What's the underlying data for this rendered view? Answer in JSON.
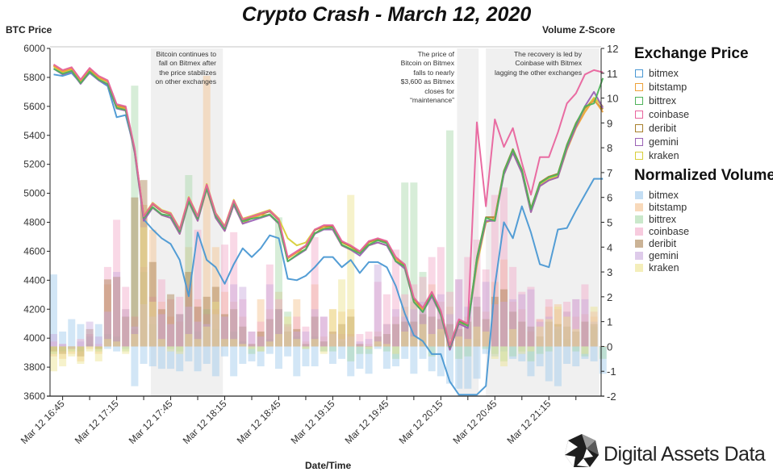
{
  "title": "Crypto Crash - March 12, 2020",
  "logo_text": "Digital Assets Data",
  "legend": {
    "price_title": "Exchange Price",
    "volume_title": "Normalized Volume",
    "items": [
      "bitmex",
      "bitstamp",
      "bittrex",
      "coinbase",
      "deribit",
      "gemini",
      "kraken"
    ]
  },
  "annotations": [
    {
      "lines": [
        "Bitcoin continues to",
        "fall on Bitmex after",
        "the price stabilizes",
        "on other exchanges"
      ],
      "shade": [
        "17:34",
        "18:14"
      ]
    },
    {
      "lines": [
        "The price of",
        "Bitcoin on Bitmex",
        "falls to nearly",
        "$3,600 as Bitmex",
        "closes for",
        "“maintenance”"
      ],
      "shade": [
        "20:24",
        "20:36"
      ]
    },
    {
      "lines": [
        "The recovery is led by",
        "Coinbase with Bitmex",
        "lagging the other exchanges"
      ],
      "shade": [
        "20:40",
        "21:43"
      ]
    }
  ],
  "chart_data": {
    "type": "line",
    "title": "Crypto Crash - March 12, 2020",
    "xlabel": "Date/Time",
    "ylabel": "BTC Price",
    "y2label": "Volume Z-Score",
    "x_date": "Mar 12",
    "x_start": "16:40",
    "x_step_minutes": 5,
    "x_range": [
      "16:38",
      "21:44"
    ],
    "x_tick_labels": [
      "Mar 12 16:45",
      "Mar 12 17:15",
      "Mar 12 17:45",
      "Mar 12 18:15",
      "Mar 12 18:45",
      "Mar 12 19:15",
      "Mar 12 19:45",
      "Mar 12 20:15",
      "Mar 12 20:45",
      "Mar 12 21:15"
    ],
    "x_tick_times": [
      "16:45",
      "17:15",
      "17:45",
      "18:15",
      "18:45",
      "19:15",
      "19:45",
      "20:15",
      "20:45",
      "21:15"
    ],
    "ylim": [
      3600,
      6000
    ],
    "y_ticks": [
      3600,
      3800,
      4000,
      4200,
      4400,
      4600,
      4800,
      5000,
      5200,
      5400,
      5600,
      5800,
      6000
    ],
    "y2lim": [
      -2,
      12
    ],
    "y2_ticks": [
      -2,
      -1,
      0,
      1,
      2,
      3,
      4,
      5,
      6,
      7,
      8,
      9,
      10,
      11,
      12
    ],
    "legend_position": "right",
    "colors": {
      "bitmex": "#4a98d3",
      "bitstamp": "#eda23a",
      "bittrex": "#4fb35a",
      "coinbase": "#e8649d",
      "deribit": "#a8802c",
      "gemini": "#9a62b5",
      "kraken": "#d8cf3a"
    },
    "volume_colors": {
      "bitmex": "#9cc8ec",
      "bitstamp": "#f3c08c",
      "bittrex": "#a6d8a8",
      "coinbase": "#f2a8c8",
      "deribit": "#a88050",
      "gemini": "#c8a8dc",
      "kraken": "#ece28c"
    },
    "price_series": [
      {
        "name": "bitmex",
        "values": [
          5820,
          5810,
          5830,
          5760,
          5830,
          5780,
          5740,
          5525,
          5540,
          5300,
          4820,
          4750,
          4690,
          4650,
          4540,
          4290,
          4730,
          4540,
          4490,
          4375,
          4510,
          4620,
          4560,
          4620,
          4710,
          4690,
          4410,
          4400,
          4430,
          4490,
          4560,
          4560,
          4490,
          4540,
          4450,
          4525,
          4525,
          4490,
          4360,
          4170,
          4020,
          3980,
          3890,
          3890,
          3700,
          3610,
          3610,
          3610,
          3670,
          4360,
          4800,
          4690,
          4910,
          4730,
          4510,
          4490,
          4750,
          4760,
          4880,
          4990,
          5100,
          5100
        ]
      },
      {
        "name": "bitstamp",
        "values": [
          5880,
          5840,
          5860,
          5770,
          5850,
          5800,
          5770,
          5600,
          5585,
          5280,
          4830,
          4900,
          4850,
          4830,
          4720,
          4940,
          4810,
          5030,
          4830,
          4740,
          4920,
          4790,
          4830,
          4850,
          4850,
          4790,
          4550,
          4590,
          4610,
          4720,
          4770,
          4750,
          4640,
          4610,
          4590,
          4640,
          4660,
          4640,
          4550,
          4480,
          4250,
          4200,
          4290,
          4160,
          3920,
          4100,
          4090,
          4530,
          4800,
          4830,
          5130,
          5280,
          5140,
          4870,
          5050,
          5090,
          5110,
          5300,
          5450,
          5560,
          5650,
          5560
        ]
      },
      {
        "name": "bittrex",
        "values": [
          5860,
          5825,
          5845,
          5760,
          5840,
          5785,
          5755,
          5590,
          5575,
          5300,
          4830,
          4905,
          4855,
          4845,
          4735,
          4945,
          4825,
          5035,
          4845,
          4755,
          4935,
          4805,
          4825,
          4835,
          4855,
          4795,
          4530,
          4575,
          4615,
          4725,
          4755,
          4765,
          4645,
          4615,
          4585,
          4645,
          4675,
          4655,
          4530,
          4495,
          4250,
          4180,
          4305,
          4165,
          3940,
          4115,
          4085,
          4550,
          4830,
          4810,
          5150,
          5300,
          5160,
          4890,
          5070,
          5110,
          5130,
          5330,
          5480,
          5600,
          5620,
          5795
        ]
      },
      {
        "name": "coinbase",
        "values": [
          5890,
          5850,
          5870,
          5785,
          5865,
          5810,
          5780,
          5615,
          5600,
          5310,
          4840,
          4930,
          4880,
          4860,
          4750,
          4970,
          4840,
          5060,
          4860,
          4770,
          4950,
          4820,
          4840,
          4860,
          4880,
          4820,
          4560,
          4600,
          4640,
          4750,
          4780,
          4780,
          4670,
          4640,
          4600,
          4670,
          4690,
          4670,
          4560,
          4510,
          4280,
          4210,
          4320,
          4190,
          3950,
          4130,
          4100,
          5490,
          4910,
          5510,
          5320,
          5450,
          5210,
          4990,
          5250,
          5250,
          5420,
          5620,
          5690,
          5820,
          5850,
          5835
        ]
      },
      {
        "name": "deribit",
        "values": [
          5885,
          5845,
          5865,
          5780,
          5860,
          5805,
          5775,
          5610,
          5595,
          5300,
          4835,
          4925,
          4875,
          4855,
          4745,
          4965,
          4835,
          5055,
          4855,
          4765,
          4945,
          4815,
          4835,
          4855,
          4875,
          4815,
          4555,
          4595,
          4635,
          4745,
          4775,
          4775,
          4665,
          4635,
          4595,
          4665,
          4685,
          4665,
          4555,
          4505,
          4275,
          4205,
          4315,
          4185,
          3945,
          4125,
          4095,
          4555,
          4835,
          4835,
          5155,
          5305,
          5165,
          4895,
          5075,
          5115,
          5135,
          5335,
          5485,
          5590,
          5640,
          5580
        ]
      },
      {
        "name": "gemini",
        "values": [
          5860,
          5820,
          5840,
          5755,
          5835,
          5780,
          5750,
          5585,
          5570,
          5280,
          4810,
          4900,
          4850,
          4830,
          4720,
          4940,
          4810,
          5030,
          4830,
          4740,
          4920,
          4790,
          4810,
          4830,
          4850,
          4790,
          4530,
          4570,
          4610,
          4720,
          4750,
          4750,
          4640,
          4610,
          4570,
          4640,
          4660,
          4640,
          4530,
          4480,
          4250,
          4180,
          4290,
          4160,
          3920,
          4100,
          4070,
          4530,
          4810,
          4810,
          5130,
          5280,
          5140,
          4870,
          5050,
          5090,
          5110,
          5310,
          5460,
          5600,
          5700,
          5590
        ]
      },
      {
        "name": "kraken",
        "values": [
          5875,
          5835,
          5855,
          5770,
          5850,
          5795,
          5770,
          5600,
          5585,
          5295,
          4845,
          4935,
          4885,
          4865,
          4755,
          4975,
          4845,
          5065,
          4865,
          4775,
          4955,
          4825,
          4845,
          4865,
          4885,
          4825,
          4690,
          4640,
          4660,
          4750,
          4770,
          4770,
          4660,
          4630,
          4590,
          4660,
          4680,
          4660,
          4560,
          4500,
          4270,
          4200,
          4310,
          4180,
          3940,
          4120,
          4090,
          4500,
          4800,
          4820,
          5140,
          5290,
          5150,
          4880,
          5060,
          5100,
          5120,
          5320,
          5460,
          5580,
          5660,
          5600
        ]
      }
    ],
    "volume_series": [
      {
        "name": "bitmex",
        "values": [
          2.9,
          0.6,
          1.1,
          0.9,
          0.4,
          0.9,
          -0.1,
          -0.2,
          -0.1,
          -1.6,
          -0.7,
          -0.8,
          -0.9,
          -0.9,
          -1.0,
          -0.6,
          -1.0,
          -0.7,
          -1.2,
          -0.4,
          -1.2,
          -0.7,
          -0.6,
          -0.8,
          -0.3,
          -0.9,
          -0.4,
          -1.2,
          -0.8,
          -0.8,
          -0.2,
          -0.7,
          -0.5,
          -1.2,
          -0.9,
          -1.1,
          -0.1,
          -0.9,
          -0.8,
          -0.5,
          -1.1,
          -0.5,
          -1.0,
          -1.2,
          -1.5,
          -1.7,
          -1.7,
          -1.3,
          -0.3,
          -0.4,
          -0.2,
          -0.5,
          -0.6,
          -1.2,
          -0.8,
          -1.4,
          -1.6,
          -0.7,
          -0.8,
          -0.5,
          -0.6,
          -1.1
        ]
      },
      {
        "name": "bitstamp",
        "values": [
          -0.4,
          -0.5,
          -0.3,
          -0.6,
          -0.1,
          -0.3,
          2.5,
          2.8,
          1.5,
          0.7,
          5.7,
          4.7,
          1.8,
          1.2,
          1.0,
          4.0,
          1.9,
          10.9,
          4.0,
          2.2,
          1.8,
          1.2,
          0.1,
          1.9,
          1.5,
          2.2,
          0.9,
          1.9,
          0.2,
          2.5,
          0.4,
          1.5,
          1.4,
          1.5,
          0.1,
          0.1,
          0.6,
          0.9,
          1.2,
          1.6,
          1.8,
          1.5,
          2.5,
          1.8,
          1.6,
          1.0,
          1.2,
          2.0,
          1.4,
          2.6,
          3.5,
          1.8,
          1.5,
          0.6,
          1.1,
          1.6,
          1.7,
          1.4,
          1.2,
          1.3,
          1.2,
          0.0
        ]
      },
      {
        "name": "bittrex",
        "values": [
          -0.3,
          -0.2,
          -0.2,
          -0.2,
          0.1,
          -0.2,
          0.5,
          0.4,
          -0.2,
          10.5,
          3.0,
          0.9,
          0.3,
          -0.1,
          -0.2,
          6.9,
          0.6,
          1.5,
          0.7,
          0.3,
          0.6,
          0.2,
          -0.3,
          -0.2,
          0.3,
          5.2,
          1.4,
          0.4,
          -0.1,
          0.4,
          -0.2,
          -0.2,
          0.2,
          -0.6,
          -0.3,
          -0.3,
          0.1,
          -0.2,
          -0.5,
          6.6,
          6.6,
          3.0,
          -0.4,
          0.6,
          8.7,
          -0.5,
          -0.4,
          0.3,
          -0.1,
          -0.3,
          -0.6,
          -0.4,
          -0.2,
          -0.6,
          -0.3,
          -0.2,
          0.7,
          0.3,
          -0.2,
          -0.4,
          0.8,
          -0.5
        ]
      },
      {
        "name": "coinbase",
        "values": [
          0.2,
          0.1,
          0.0,
          0.3,
          0.5,
          0.1,
          3.2,
          5.1,
          2.4,
          1.2,
          3.2,
          2.0,
          2.7,
          1.9,
          2.0,
          2.5,
          4.7,
          1.3,
          1.5,
          4.1,
          4.6,
          1.9,
          0.6,
          1.0,
          3.3,
          1.9,
          0.8,
          1.2,
          0.8,
          4.4,
          1.2,
          0.6,
          0.5,
          0.5,
          0.5,
          0.6,
          2.6,
          2.1,
          3.9,
          2.1,
          2.5,
          2.8,
          3.6,
          4.0,
          2.2,
          2.7,
          3.6,
          4.3,
          3.1,
          6.1,
          6.4,
          3.2,
          2.2,
          2.4,
          1.1,
          1.9,
          1.5,
          1.8,
          1.9,
          2.5,
          1.4,
          0.0
        ]
      },
      {
        "name": "deribit",
        "values": [
          -0.2,
          -0.3,
          -0.1,
          -0.4,
          0.7,
          -0.1,
          2.7,
          2.8,
          1.2,
          6.0,
          6.7,
          3.4,
          1.5,
          2.1,
          1.3,
          3.0,
          1.6,
          2.0,
          2.4,
          1.3,
          1.5,
          0.8,
          0.1,
          0.6,
          1.1,
          1.5,
          0.6,
          0.7,
          0.1,
          1.2,
          0.2,
          0.6,
          0.9,
          1.2,
          0.1,
          0.0,
          0.4,
          0.5,
          0.9,
          1.0,
          1.0,
          1.3,
          1.2,
          1.1,
          0.9,
          0.7,
          1.0,
          1.6,
          1.1,
          2.0,
          2.3,
          1.4,
          1.0,
          0.8,
          0.4,
          1.0,
          0.9,
          0.8,
          0.6,
          1.0,
          0.9,
          0.0
        ]
      },
      {
        "name": "gemini",
        "values": [
          0.5,
          0.1,
          -0.1,
          0.2,
          1.0,
          0.4,
          1.4,
          3.0,
          1.5,
          0.8,
          1.7,
          1.2,
          1.3,
          0.9,
          1.3,
          1.6,
          1.0,
          0.9,
          1.3,
          1.2,
          2.5,
          2.4,
          0.6,
          0.4,
          2.5,
          1.5,
          0.9,
          0.6,
          0.6,
          1.5,
          1.2,
          0.5,
          0.3,
          0.4,
          0.2,
          0.3,
          3.3,
          0.9,
          1.5,
          1.2,
          1.5,
          1.8,
          2.0,
          2.1,
          1.3,
          2.7,
          1.6,
          2.0,
          2.6,
          1.7,
          1.8,
          1.9,
          2.1,
          2.3,
          1.0,
          1.2,
          0.8,
          1.4,
          1.9,
          1.9,
          1.0,
          0.0
        ]
      },
      {
        "name": "kraken",
        "values": [
          -1.0,
          -0.8,
          -0.4,
          -0.7,
          -0.2,
          -0.6,
          0.3,
          0.2,
          -0.3,
          0.5,
          4.8,
          1.8,
          0.3,
          -0.2,
          -0.3,
          0.5,
          0.3,
          0.8,
          1.8,
          0.3,
          0.3,
          0.1,
          -0.1,
          -0.2,
          0.2,
          0.5,
          1.2,
          0.3,
          -0.1,
          0.3,
          -0.3,
          1.5,
          2.7,
          6.1,
          0.0,
          -0.1,
          0.2,
          0.1,
          -0.3,
          0.6,
          0.4,
          0.9,
          0.5,
          0.7,
          0.3,
          0.4,
          0.3,
          0.8,
          0.6,
          -0.5,
          -0.8,
          0.7,
          -0.3,
          -0.2,
          0.8,
          1.1,
          1.6,
          1.2,
          0.7,
          -0.3,
          1.6,
          0.0
        ]
      }
    ]
  }
}
